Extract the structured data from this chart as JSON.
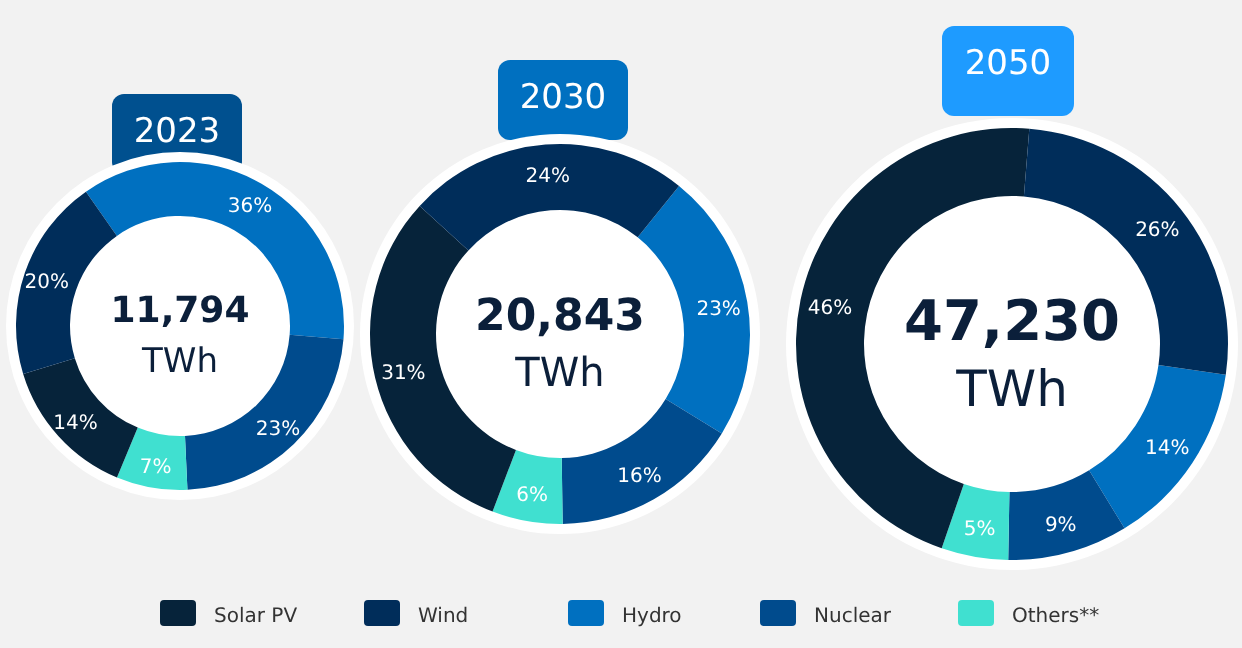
{
  "chart_data": [
    {
      "type": "donut",
      "title": "2023",
      "categories": [
        "Hydro",
        "Nuclear",
        "Others**",
        "Solar PV",
        "Wind"
      ],
      "values": [
        36,
        23,
        7,
        14,
        20
      ],
      "value_labels": [
        "36%",
        "23%",
        "7%",
        "14%",
        "20%"
      ],
      "colors": [
        "#0070c0",
        "#004b8d",
        "#40e0d0",
        "#06233a",
        "#002d5a"
      ],
      "annotations": [
        "11,794",
        "TWh"
      ],
      "legend": "bottom"
    },
    {
      "type": "donut",
      "title": "2030",
      "categories": [
        null,
        null,
        null,
        null,
        null
      ],
      "values": [
        23,
        16,
        6,
        31,
        24
      ],
      "value_labels": [
        "23%",
        "16%",
        "6%",
        "31%",
        "24%"
      ],
      "colors": [
        "#0070c0",
        "#004b8d",
        "#40e0d0",
        "#06233a",
        "#002d5a"
      ],
      "annotations": [
        "20,843",
        "TWh"
      ]
    },
    {
      "type": "donut",
      "title": "2050",
      "categories": [
        null,
        null,
        null,
        null,
        null
      ],
      "values": [
        14,
        9,
        5,
        46,
        26
      ],
      "value_labels": [
        "14%",
        "9%",
        "5%",
        "46%",
        "26%"
      ],
      "colors": [
        "#0070c0",
        "#004b8d",
        "#40e0d0",
        "#06233a",
        "#002d5a"
      ],
      "annotations": [
        "47,230",
        "TWh"
      ]
    }
  ]
}
